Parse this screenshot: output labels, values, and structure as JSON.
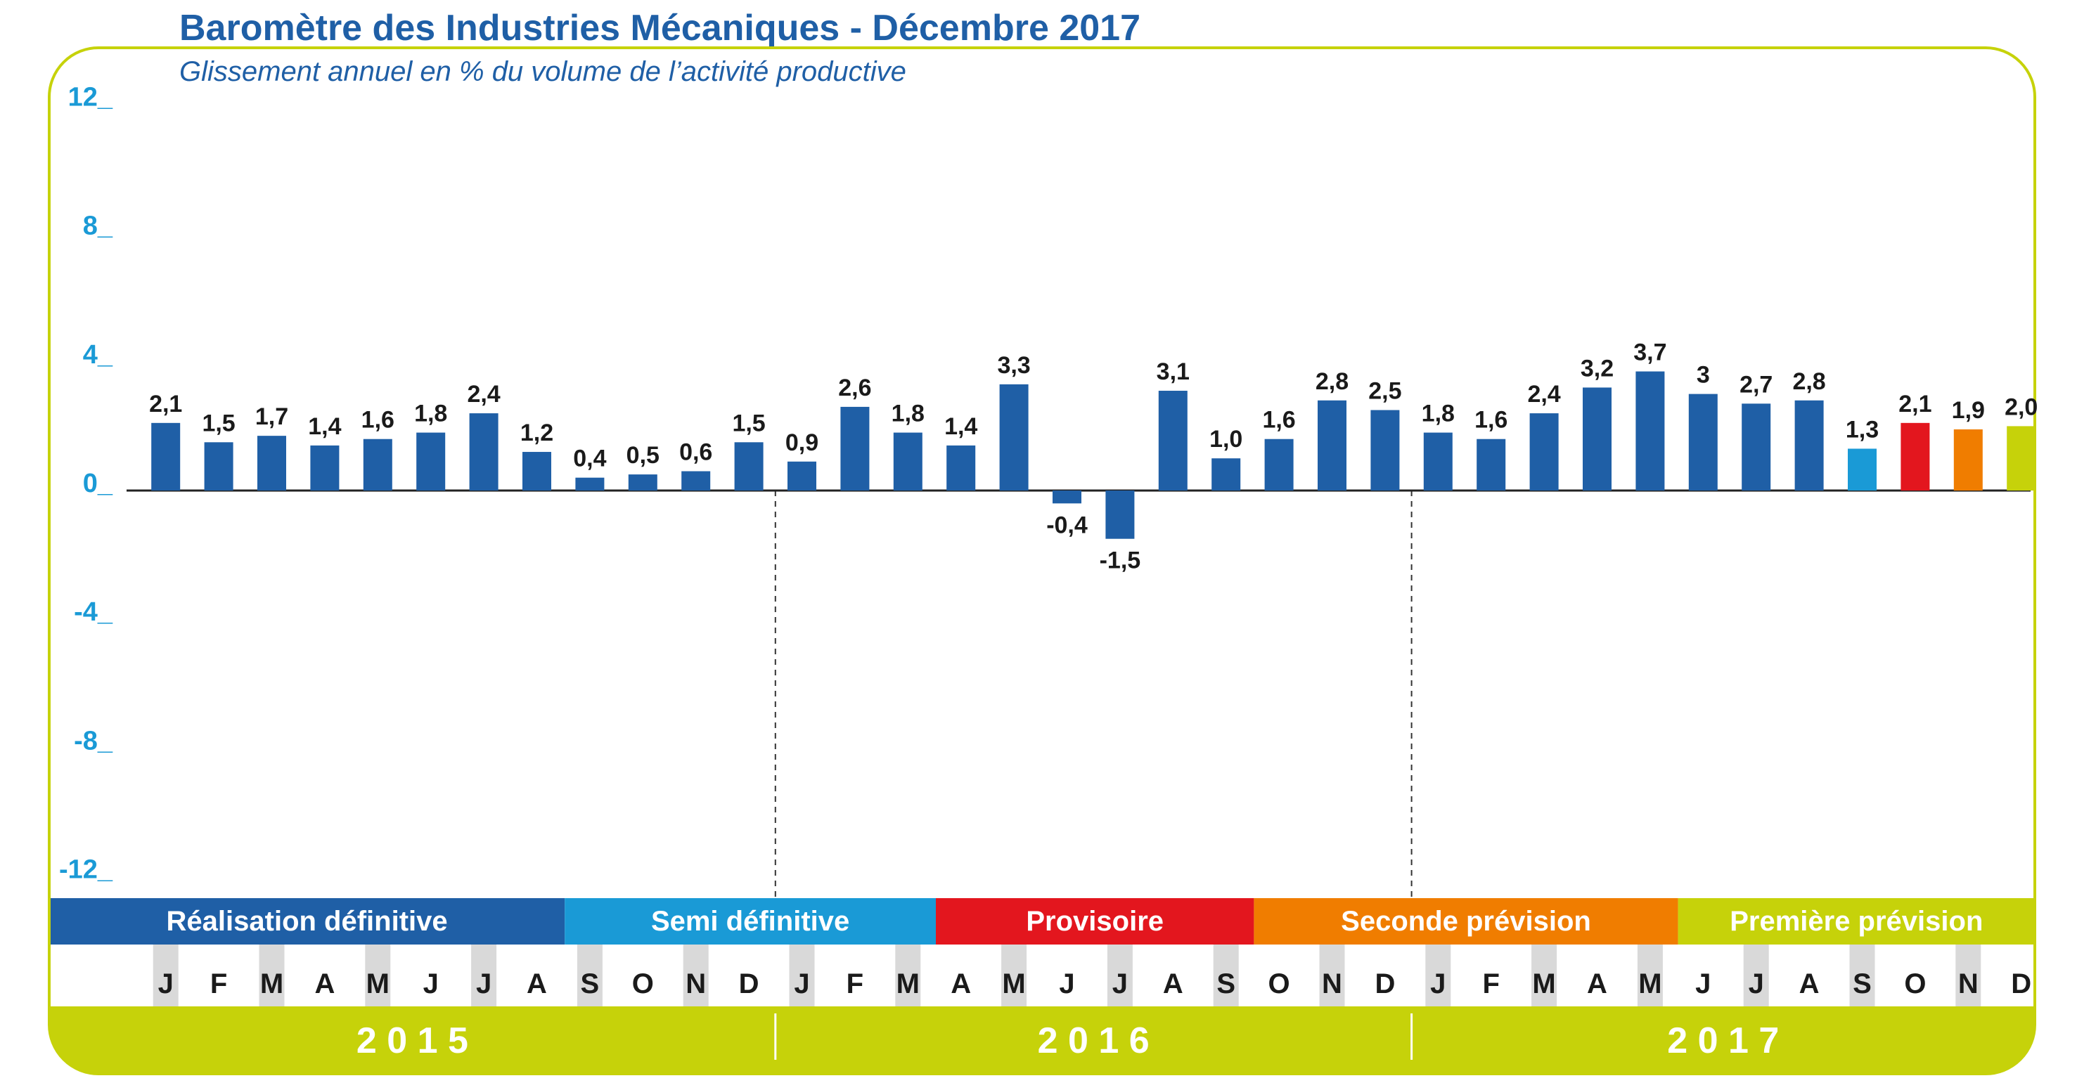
{
  "title": "Baromètre des Industries Mécaniques - Décembre 2017",
  "subtitle": "Glissement annuel en % du volume de l’activité productive",
  "colors": {
    "frame": "#c6d20a",
    "axis_text": "#1a9ad6",
    "label_text": "#1a1a1a"
  },
  "chart_data": {
    "type": "bar",
    "title": "Baromètre des Industries Mécaniques - Décembre 2017",
    "subtitle": "Glissement annuel en % du volume de l’activité productive",
    "ylim": [
      -12,
      12
    ],
    "yticks": [
      "12_",
      "8_",
      "4_",
      "0_",
      "-4_",
      "-8_",
      "-12_"
    ],
    "ytick_values": [
      12,
      8,
      4,
      0,
      -4,
      -8,
      -12
    ],
    "grid": false,
    "categories": [
      "J",
      "F",
      "M",
      "A",
      "M",
      "J",
      "J",
      "A",
      "S",
      "O",
      "N",
      "D",
      "J",
      "F",
      "M",
      "A",
      "M",
      "J",
      "J",
      "A",
      "S",
      "O",
      "N",
      "D",
      "J",
      "F",
      "M",
      "A",
      "M",
      "J",
      "J",
      "A",
      "S",
      "O",
      "N",
      "D"
    ],
    "values": [
      2.1,
      1.5,
      1.7,
      1.4,
      1.6,
      1.8,
      2.4,
      1.2,
      0.4,
      0.5,
      0.6,
      1.5,
      0.9,
      2.6,
      1.8,
      1.4,
      3.3,
      -0.4,
      -1.5,
      3.1,
      1.0,
      1.6,
      2.8,
      2.5,
      1.8,
      1.6,
      2.4,
      3.2,
      3.7,
      3,
      2.7,
      2.8,
      1.3,
      2.1,
      1.9,
      2.0
    ],
    "value_labels": [
      "2,1",
      "1,5",
      "1,7",
      "1,4",
      "1,6",
      "1,8",
      "2,4",
      "1,2",
      "0,4",
      "0,5",
      "0,6",
      "1,5",
      "0,9",
      "2,6",
      "1,8",
      "1,4",
      "3,3",
      "-0,4",
      "-1,5",
      "3,1",
      "1,0",
      "1,6",
      "2,8",
      "2,5",
      "1,8",
      "1,6",
      "2,4",
      "3,2",
      "3,7",
      "3",
      "2,7",
      "2,8",
      "1,3",
      "2,1",
      "1,9",
      "2,0"
    ],
    "bar_colors": [
      "#1f5fa6",
      "#1f5fa6",
      "#1f5fa6",
      "#1f5fa6",
      "#1f5fa6",
      "#1f5fa6",
      "#1f5fa6",
      "#1f5fa6",
      "#1f5fa6",
      "#1f5fa6",
      "#1f5fa6",
      "#1f5fa6",
      "#1f5fa6",
      "#1f5fa6",
      "#1f5fa6",
      "#1f5fa6",
      "#1f5fa6",
      "#1f5fa6",
      "#1f5fa6",
      "#1f5fa6",
      "#1f5fa6",
      "#1f5fa6",
      "#1f5fa6",
      "#1f5fa6",
      "#1f5fa6",
      "#1f5fa6",
      "#1f5fa6",
      "#1f5fa6",
      "#1f5fa6",
      "#1f5fa6",
      "#1f5fa6",
      "#1f5fa6",
      "#1a9ad6",
      "#e3161e",
      "#f07d00",
      "#c6d20a"
    ],
    "years": [
      {
        "label": "2 0 1 5",
        "start": 0,
        "end": 11
      },
      {
        "label": "2 0 1 6",
        "start": 12,
        "end": 23
      },
      {
        "label": "2 0 1 7",
        "start": 24,
        "end": 35
      }
    ],
    "phases": [
      {
        "label": "Réalisation définitive",
        "color": "#1f5fa6",
        "start": 0,
        "end": 7
      },
      {
        "label": "Semi définitive",
        "color": "#1a9ad6",
        "start": 8,
        "end": 14
      },
      {
        "label": "Provisoire",
        "color": "#e3161e",
        "start": 15,
        "end": 20
      },
      {
        "label": "Seconde prévision",
        "color": "#f07d00",
        "start": 21,
        "end": 28
      },
      {
        "label": "Première prévision",
        "color": "#c6d20a",
        "start": 29,
        "end": 35
      }
    ]
  }
}
